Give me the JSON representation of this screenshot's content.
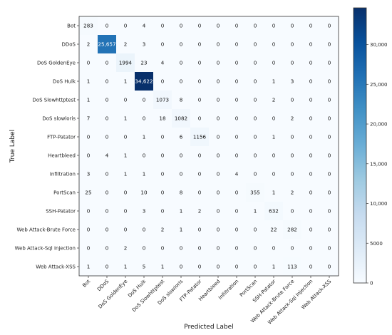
{
  "chart_data": {
    "type": "heatmap",
    "title": "",
    "xlabel": "Predicted Label",
    "ylabel": "True Label",
    "rows": [
      "Bot",
      "DDoS",
      "DoS GoldenEye",
      "DoS Hulk",
      "DoS Slowhttptest",
      "DoS slowloris",
      "FTP-Patator",
      "Heartbleed",
      "Infiltration",
      "PortScan",
      "SSH-Patator",
      "Web Attack-Brute Force",
      "Web Attack-Sql Injection",
      "Web Attack-XSS"
    ],
    "columns": [
      "Bot",
      "DDoS",
      "DoS GoldenEye",
      "DoS Hulk",
      "DoS Slowhttptest",
      "DoS slowloris",
      "FTP-Patator",
      "Heartbleed",
      "Infiltration",
      "PortScan",
      "SSH-Patator",
      "Web Attack-Brute Force",
      "Web Attack-Sql Injection",
      "Web Attack-XSS"
    ],
    "values": [
      [
        283,
        0,
        0,
        4,
        0,
        0,
        0,
        0,
        0,
        0,
        0,
        0,
        0,
        0
      ],
      [
        2,
        25657,
        2,
        3,
        0,
        0,
        0,
        0,
        0,
        0,
        0,
        0,
        0,
        0
      ],
      [
        0,
        0,
        1994,
        23,
        4,
        0,
        0,
        0,
        0,
        0,
        0,
        0,
        0,
        0
      ],
      [
        1,
        0,
        1,
        34622,
        0,
        0,
        0,
        0,
        0,
        0,
        1,
        3,
        0,
        0
      ],
      [
        1,
        0,
        0,
        0,
        1073,
        8,
        0,
        0,
        0,
        0,
        2,
        0,
        0,
        0
      ],
      [
        7,
        0,
        1,
        0,
        18,
        1082,
        0,
        0,
        0,
        0,
        0,
        2,
        0,
        0
      ],
      [
        0,
        0,
        0,
        1,
        0,
        6,
        1156,
        0,
        0,
        0,
        1,
        0,
        0,
        0
      ],
      [
        0,
        4,
        1,
        0,
        0,
        0,
        0,
        0,
        0,
        0,
        0,
        0,
        0,
        0
      ],
      [
        3,
        0,
        1,
        1,
        0,
        0,
        0,
        0,
        4,
        0,
        0,
        0,
        0,
        0
      ],
      [
        25,
        0,
        0,
        10,
        0,
        8,
        0,
        0,
        0,
        355,
        1,
        2,
        0,
        0
      ],
      [
        0,
        0,
        0,
        3,
        0,
        1,
        2,
        0,
        0,
        1,
        632,
        0,
        0,
        0
      ],
      [
        0,
        0,
        0,
        0,
        2,
        1,
        0,
        0,
        0,
        0,
        22,
        282,
        0,
        0
      ],
      [
        0,
        0,
        2,
        0,
        0,
        0,
        0,
        0,
        0,
        0,
        0,
        0,
        0,
        0
      ],
      [
        1,
        0,
        1,
        5,
        1,
        0,
        0,
        0,
        0,
        0,
        1,
        113,
        0,
        0
      ]
    ],
    "colorbar": {
      "min": 0,
      "max": 34622,
      "ticks": [
        0,
        5000,
        10000,
        15000,
        20000,
        25000,
        30000
      ],
      "tick_labels": [
        "0",
        "5000",
        "10,000",
        "15,000",
        "20,000",
        "25,000",
        "30,000"
      ],
      "colormap": "Blues",
      "colors": [
        "#f7fbff",
        "#deebf7",
        "#c6dbef",
        "#9ecae1",
        "#6baed6",
        "#4292c6",
        "#2171b5",
        "#08519c",
        "#08306b"
      ]
    }
  }
}
